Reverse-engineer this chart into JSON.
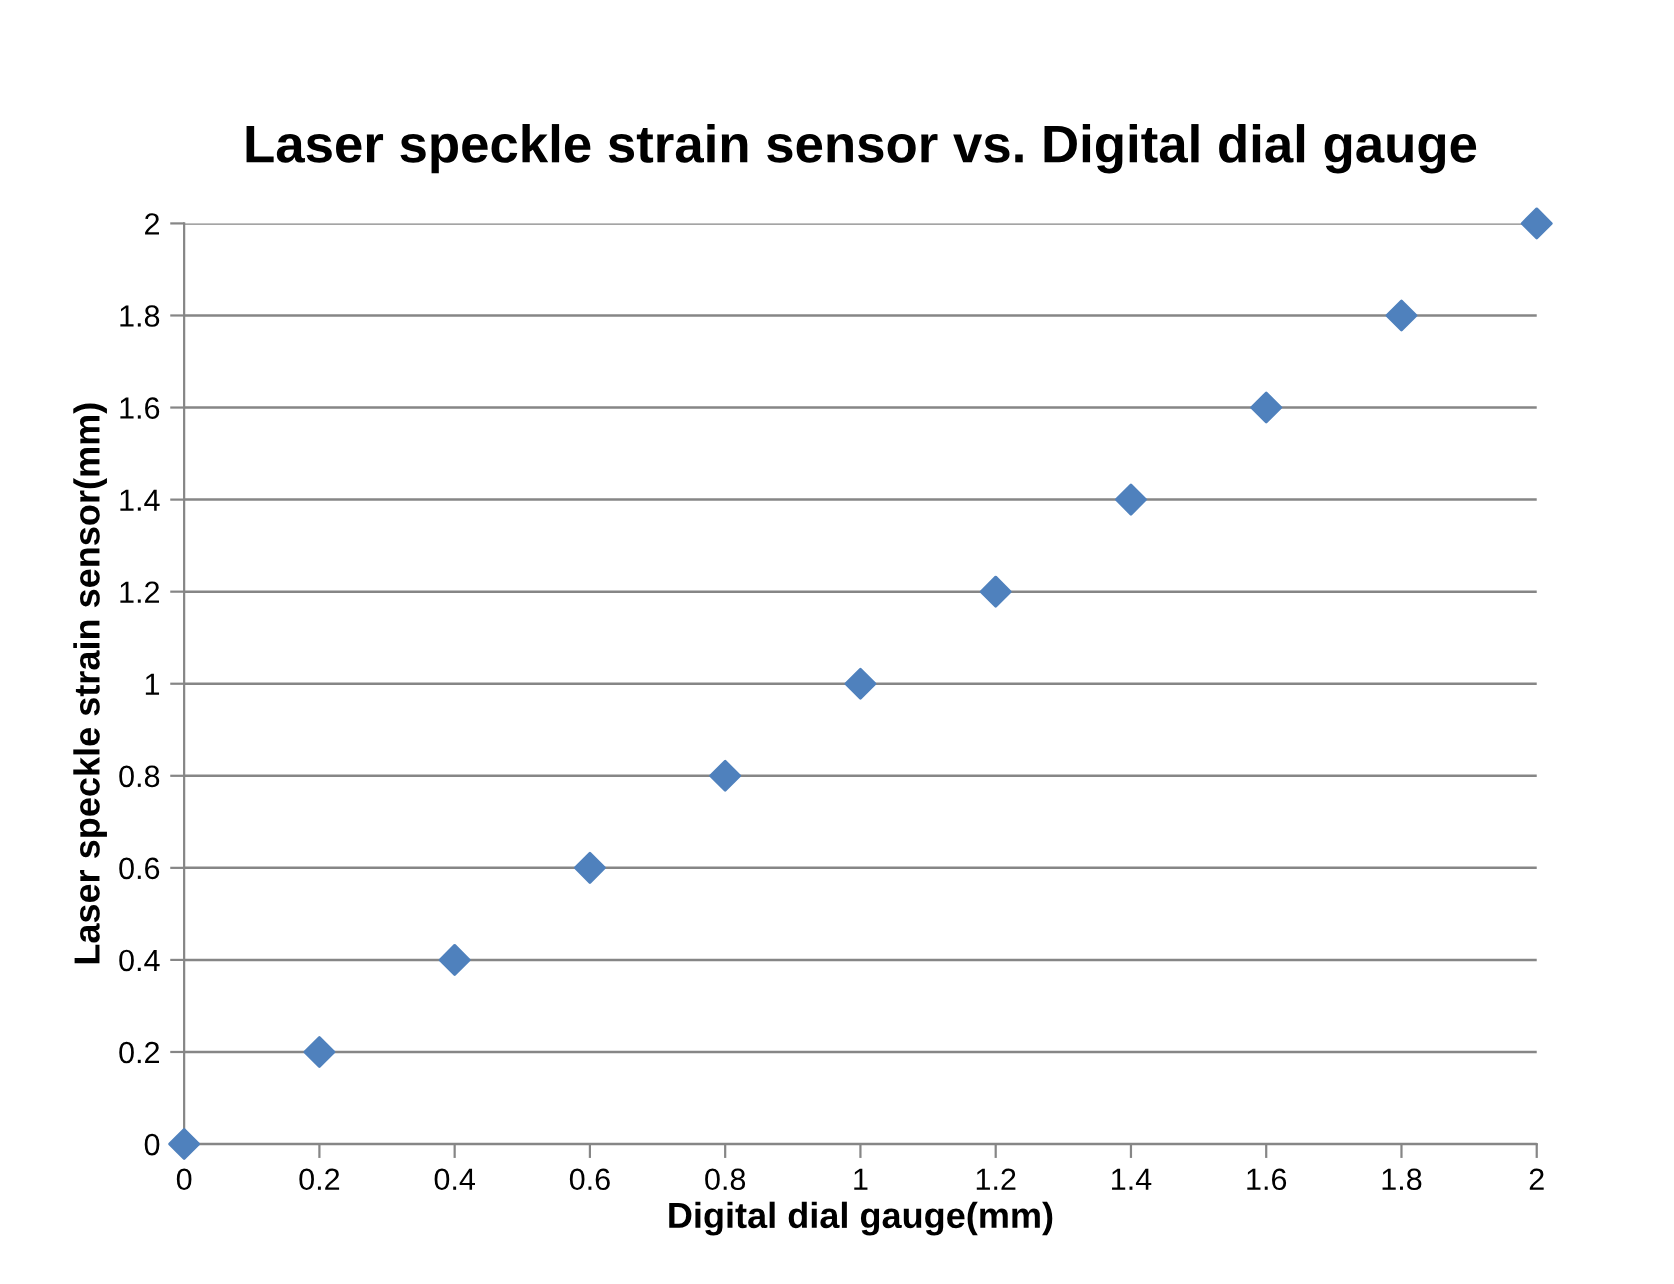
{
  "chart_data": {
    "type": "scatter",
    "title": "Laser speckle strain sensor vs. Digital dial gauge",
    "xlabel": "Digital dial gauge(mm)",
    "ylabel": "Laser speckle strain sensor(mm)",
    "x": [
      0,
      0.2,
      0.4,
      0.6,
      0.8,
      1,
      1.2,
      1.4,
      1.6,
      1.8,
      2
    ],
    "series": [
      {
        "color": "#4f81bd",
        "values": [
          0,
          0.2,
          0.4,
          0.6,
          0.8,
          1,
          1.2,
          1.4,
          1.6,
          1.8,
          2
        ]
      }
    ],
    "xlim": [
      0,
      2
    ],
    "ylim": [
      0,
      2
    ],
    "xticks": [
      0,
      0.2,
      0.4,
      0.6,
      0.8,
      1,
      1.2,
      1.4,
      1.6,
      1.8,
      2
    ],
    "yticks": [
      0,
      0.2,
      0.4,
      0.6,
      0.8,
      1,
      1.2,
      1.4,
      1.6,
      1.8,
      2
    ],
    "grid": "y",
    "legend": false,
    "marker": "diamond"
  }
}
